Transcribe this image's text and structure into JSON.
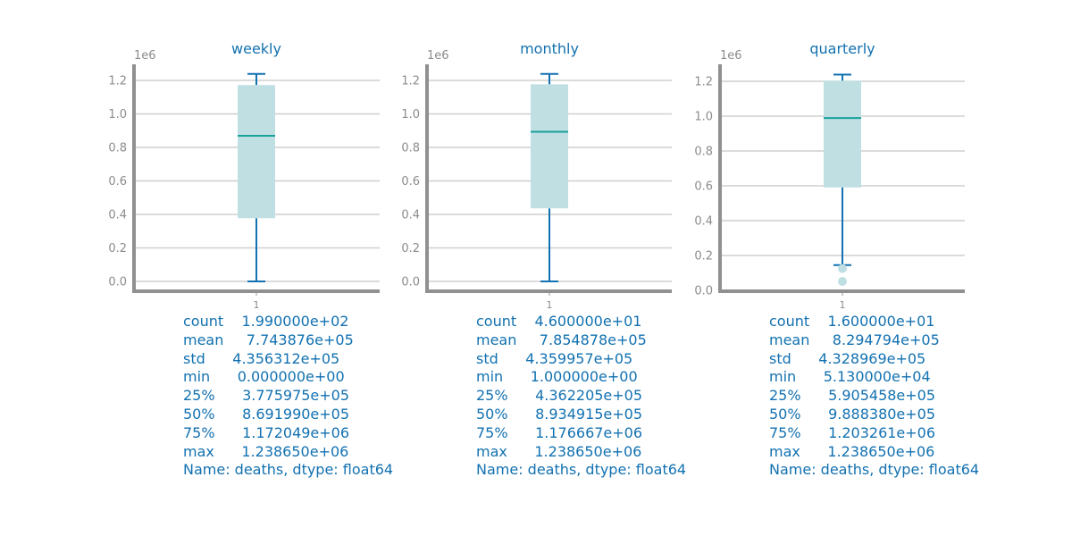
{
  "chart_data": [
    {
      "type": "box",
      "title": "weekly",
      "x_tick_labels": [
        "1"
      ],
      "y_offset_label": "1e6",
      "y_tick_labels": [
        "0.0",
        "0.2",
        "0.4",
        "0.6",
        "0.8",
        "1.0",
        "1.2"
      ],
      "y_scale_factor": 1000000,
      "ylim": [
        -60000,
        1300000
      ],
      "grid": "horizontal",
      "box": {
        "min": 0,
        "q1": 377597.5,
        "median": 869199,
        "q3": 1172049,
        "max": 1238650
      },
      "whiskers": [
        0,
        1238650
      ],
      "outliers": [],
      "stats": {
        "lines": [
          "count    1.990000e+02",
          "mean     7.743876e+05",
          "std      4.356312e+05",
          "min      0.000000e+00",
          "25%      3.775975e+05",
          "50%      8.691990e+05",
          "75%      1.172049e+06",
          "max      1.238650e+06",
          "Name: deaths, dtype: float64"
        ]
      }
    },
    {
      "type": "box",
      "title": "monthly",
      "x_tick_labels": [
        "1"
      ],
      "y_offset_label": "1e6",
      "y_tick_labels": [
        "0.0",
        "0.2",
        "0.4",
        "0.6",
        "0.8",
        "1.0",
        "1.2"
      ],
      "y_scale_factor": 1000000,
      "ylim": [
        -60000,
        1300000
      ],
      "grid": "horizontal",
      "box": {
        "min": 1,
        "q1": 436220.5,
        "median": 893491.5,
        "q3": 1176667,
        "max": 1238650
      },
      "whiskers": [
        1,
        1238650
      ],
      "outliers": [],
      "stats": {
        "lines": [
          "count    4.600000e+01",
          "mean     7.854878e+05",
          "std      4.359957e+05",
          "min      1.000000e+00",
          "25%      4.362205e+05",
          "50%      8.934915e+05",
          "75%      1.176667e+06",
          "max      1.238650e+06",
          "Name: deaths, dtype: float64"
        ]
      }
    },
    {
      "type": "box",
      "title": "quarterly",
      "x_tick_labels": [
        "1"
      ],
      "y_offset_label": "1e6",
      "y_tick_labels": [
        "0.0",
        "0.2",
        "0.4",
        "0.6",
        "0.8",
        "1.0",
        "1.2"
      ],
      "y_scale_factor": 1000000,
      "ylim": [
        0,
        1300000
      ],
      "grid": "horizontal",
      "box": {
        "min": 51300,
        "q1": 590545.8,
        "median": 988838,
        "q3": 1203261,
        "max": 1238650
      },
      "whiskers": [
        145000,
        1238650
      ],
      "outliers": [
        51300,
        125000
      ],
      "stats": {
        "lines": [
          "count    1.600000e+01",
          "mean     8.294794e+05",
          "std      4.328969e+05",
          "min      5.130000e+04",
          "25%      5.905458e+05",
          "50%      9.888380e+05",
          "75%      1.203261e+06",
          "max      1.238650e+06",
          "Name: deaths, dtype: float64"
        ]
      }
    }
  ],
  "colors": {
    "title": "#1271b1",
    "stats_text": "#1271b1",
    "box_fill": "#bfdfe3",
    "whisker": "#1271b1",
    "median": "#1aa19a",
    "outlier": "#bfdfe3",
    "grid": "#cfcfcf",
    "spine": "#909090",
    "tick_text": "#8c8c8c"
  }
}
